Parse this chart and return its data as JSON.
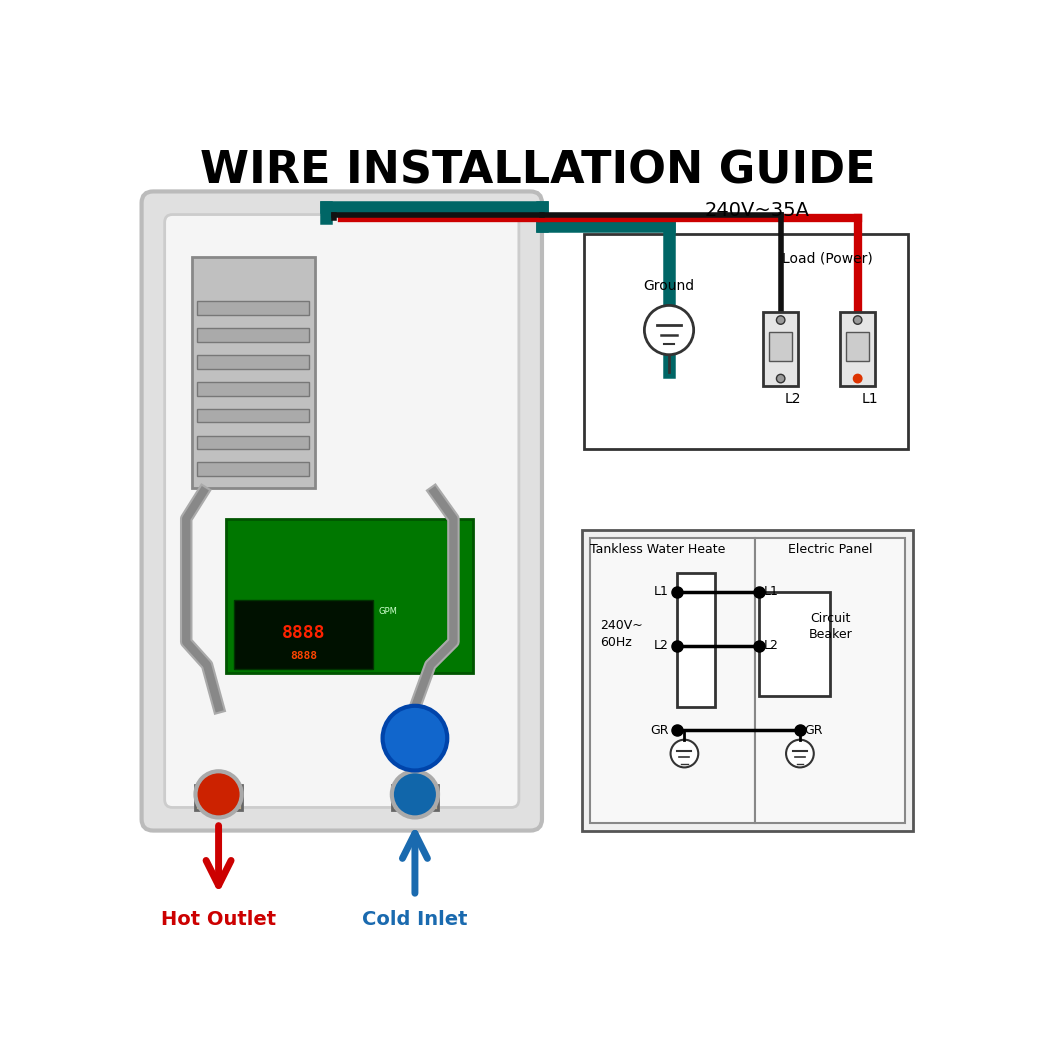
{
  "title": "WIRE INSTALLATION GUIDE",
  "bg_color": "#ffffff",
  "title_fontsize": 32,
  "hot_outlet_label": "Hot Outlet",
  "cold_inlet_label": "Cold Inlet",
  "voltage_label_top": "240V~35A",
  "ground_label": "Ground",
  "load_power_label": "Load (Power)",
  "l1_label": "L1",
  "l2_label": "L2",
  "gr_label": "GR",
  "tankless_label": "Tankless Water Heate",
  "electric_panel_label": "Electric Panel",
  "voltage_label_bottom": "240V~\n60Hz",
  "circuit_breaker_label": "Circuit\nBeaker",
  "wire_red": "#cc0000",
  "wire_green": "#006666",
  "wire_black": "#111111",
  "arrow_red": "#cc0000",
  "arrow_blue": "#1a6aaf"
}
